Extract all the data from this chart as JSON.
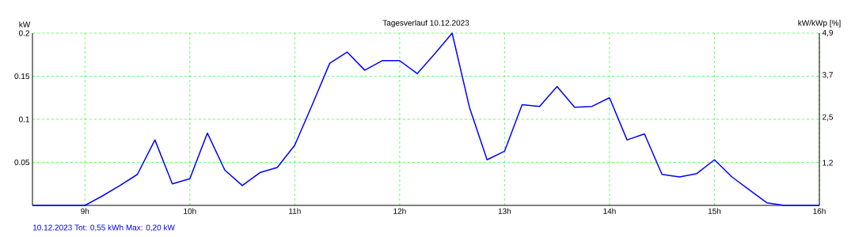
{
  "chart_data": {
    "type": "line",
    "title": "Tagesverlauf 10.12.2023",
    "ylabel": "kW",
    "y2label": "kW/kWp [%]",
    "annotations": [
      "10.12.2023 Tot: 0,55 kWh Max: 0,20 kW"
    ],
    "x": [
      8.5,
      9.0,
      9.167,
      9.333,
      9.5,
      9.667,
      9.833,
      10.0,
      10.167,
      10.333,
      10.5,
      10.667,
      10.833,
      11.0,
      11.167,
      11.333,
      11.5,
      11.667,
      11.833,
      12.0,
      12.167,
      12.333,
      12.5,
      12.667,
      12.833,
      13.0,
      13.167,
      13.333,
      13.5,
      13.667,
      13.833,
      14.0,
      14.167,
      14.333,
      14.5,
      14.667,
      14.833,
      15.0,
      15.167,
      15.333,
      15.5,
      15.667,
      16.0
    ],
    "series": [
      {
        "color": "#0000ff",
        "values": [
          0,
          0,
          0.011,
          0.023,
          0.036,
          0.076,
          0.025,
          0.031,
          0.084,
          0.041,
          0.023,
          0.038,
          0.044,
          0.07,
          0.117,
          0.165,
          0.178,
          0.157,
          0.168,
          0.168,
          0.153,
          0.176,
          0.2,
          0.113,
          0.053,
          0.063,
          0.117,
          0.115,
          0.138,
          0.114,
          0.115,
          0.125,
          0.076,
          0.083,
          0.036,
          0.033,
          0.037,
          0.053,
          0.033,
          0.018,
          0.003,
          0,
          0
        ]
      }
    ],
    "xlim": [
      8.5,
      16
    ],
    "xticks": [
      {
        "value": 9,
        "label": "9h"
      },
      {
        "value": 10,
        "label": "10h"
      },
      {
        "value": 11,
        "label": "11h"
      },
      {
        "value": 12,
        "label": "12h"
      },
      {
        "value": 13,
        "label": "13h"
      },
      {
        "value": 14,
        "label": "14h"
      },
      {
        "value": 15,
        "label": "15h"
      },
      {
        "value": 16,
        "label": "16h"
      }
    ],
    "ylim": [
      0,
      0.2
    ],
    "yticks": [
      0.05,
      0.1,
      0.15,
      0.2
    ],
    "y2lim": [
      0,
      4.9
    ],
    "y2ticks": [
      {
        "value": 1.2,
        "label": "1,2"
      },
      {
        "value": 2.5,
        "label": "2,5"
      },
      {
        "value": 3.7,
        "label": "3,7"
      },
      {
        "value": 4.9,
        "label": "4,9"
      }
    ],
    "grid": true,
    "marker": "none",
    "line_style": "solid"
  }
}
